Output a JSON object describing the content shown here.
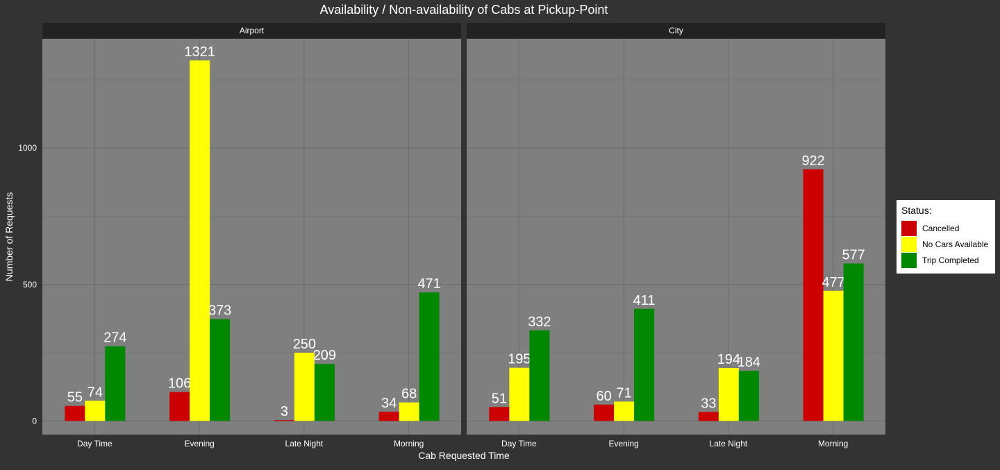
{
  "chart_data": {
    "type": "bar",
    "title": "Availability / Non-availability of Cabs at Pickup-Point",
    "xlabel": "Cab Requested Time",
    "ylabel": "Number of Requests",
    "ylim": [
      -50,
      1400
    ],
    "yticks": [
      0,
      500,
      1000
    ],
    "ytick_labels": [
      "0",
      "500",
      "1000"
    ],
    "grid": true,
    "legend_position": "right",
    "categories": [
      "Day Time",
      "Evening",
      "Late Night",
      "Morning"
    ],
    "series_names": [
      "Cancelled",
      "No Cars Available",
      "Trip Completed"
    ],
    "colors": [
      "#cc0000",
      "#ffff00",
      "#008800"
    ],
    "panels": [
      {
        "name": "Airport",
        "series": [
          {
            "name": "Cancelled",
            "values": [
              55,
              106,
              3,
              34
            ]
          },
          {
            "name": "No Cars Available",
            "values": [
              74,
              1321,
              250,
              68
            ]
          },
          {
            "name": "Trip Completed",
            "values": [
              274,
              373,
              209,
              471
            ]
          }
        ]
      },
      {
        "name": "City",
        "series": [
          {
            "name": "Cancelled",
            "values": [
              51,
              60,
              33,
              922
            ]
          },
          {
            "name": "No Cars Available",
            "values": [
              195,
              71,
              194,
              477
            ]
          },
          {
            "name": "Trip Completed",
            "values": [
              332,
              411,
              184,
              577
            ]
          }
        ]
      }
    ]
  },
  "legend": {
    "title": "Status:",
    "items": [
      {
        "label": "Cancelled",
        "color": "#cc0000"
      },
      {
        "label": "No Cars Available",
        "color": "#ffff00"
      },
      {
        "label": "Trip Completed",
        "color": "#008800"
      }
    ]
  }
}
